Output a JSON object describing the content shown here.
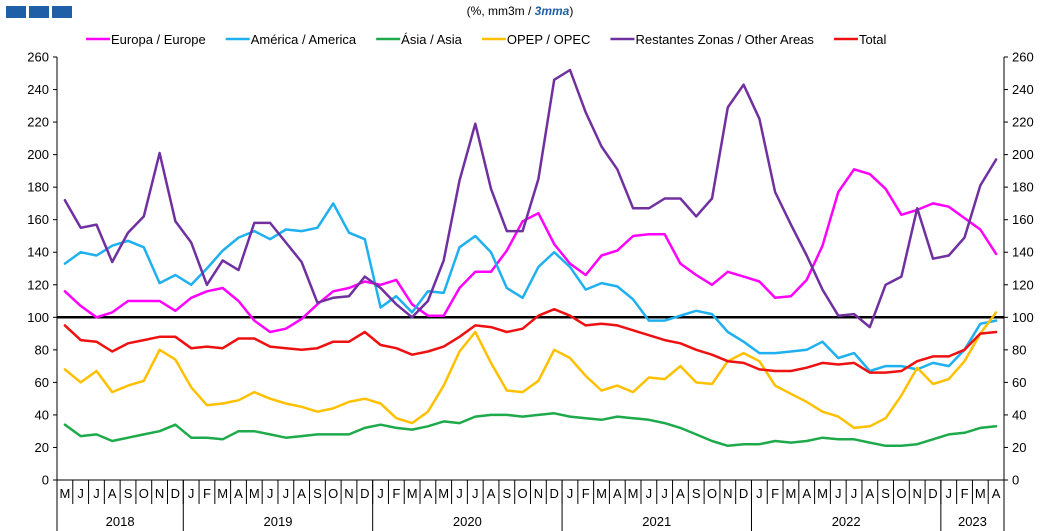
{
  "header": {
    "subtitle_prefix": "(%, mm3m  / ",
    "subtitle_emph": "3mma",
    "subtitle_suffix": ")"
  },
  "chart_data": {
    "type": "line",
    "ylim": [
      0,
      260
    ],
    "y_ticks": [
      0,
      20,
      40,
      60,
      80,
      100,
      120,
      140,
      160,
      180,
      200,
      220,
      240,
      260
    ],
    "reference_line": 100,
    "legend_placement": "top",
    "grid": false,
    "x_month_labels": [
      "M",
      "J",
      "J",
      "A",
      "S",
      "O",
      "N",
      "D",
      "J",
      "F",
      "M",
      "A",
      "M",
      "J",
      "J",
      "A",
      "S",
      "O",
      "N",
      "D",
      "J",
      "F",
      "M",
      "A",
      "M",
      "J",
      "J",
      "A",
      "S",
      "O",
      "N",
      "D",
      "J",
      "F",
      "M",
      "A",
      "M",
      "J",
      "J",
      "A",
      "S",
      "O",
      "N",
      "D",
      "J",
      "F",
      "M",
      "A",
      "M",
      "J",
      "J",
      "A",
      "S",
      "O",
      "N",
      "D",
      "J",
      "F",
      "M",
      "A"
    ],
    "year_groups": [
      {
        "label": "2018",
        "count": 8
      },
      {
        "label": "2019",
        "count": 12
      },
      {
        "label": "2020",
        "count": 12
      },
      {
        "label": "2021",
        "count": 12
      },
      {
        "label": "2022",
        "count": 12
      },
      {
        "label": "2023",
        "count": 4
      }
    ],
    "series": [
      {
        "name": "Europa / Europe",
        "color": "#ff00ff",
        "values": [
          116,
          107,
          100,
          103,
          110,
          110,
          110,
          104,
          112,
          116,
          118,
          110,
          98,
          91,
          93,
          99,
          108,
          116,
          118,
          122,
          120,
          123,
          108,
          101,
          101,
          118,
          128,
          128,
          141,
          159,
          164,
          145,
          133,
          126,
          138,
          141,
          150,
          151,
          151,
          133,
          126,
          120,
          128,
          125,
          122,
          112,
          113,
          123,
          144,
          177,
          191,
          188,
          179,
          163,
          166,
          170,
          168,
          161,
          154,
          139
        ]
      },
      {
        "name": "América / America",
        "color": "#1fb0f0",
        "values": [
          133,
          140,
          138,
          144,
          147,
          143,
          121,
          126,
          120,
          130,
          141,
          149,
          153,
          148,
          154,
          153,
          155,
          170,
          152,
          148,
          106,
          113,
          103,
          116,
          115,
          143,
          150,
          140,
          118,
          112,
          131,
          140,
          131,
          117,
          121,
          119,
          111,
          98,
          98,
          101,
          104,
          102,
          91,
          85,
          78,
          78,
          79,
          80,
          85,
          75,
          78,
          67,
          70,
          70,
          68,
          72,
          70,
          80,
          96,
          98
        ]
      },
      {
        "name": "Ásia / Asia",
        "color": "#1eaa4b",
        "values": [
          34,
          27,
          28,
          24,
          26,
          28,
          30,
          34,
          26,
          26,
          25,
          30,
          30,
          28,
          26,
          27,
          28,
          28,
          28,
          32,
          34,
          32,
          31,
          33,
          36,
          35,
          39,
          40,
          40,
          39,
          40,
          41,
          39,
          38,
          37,
          39,
          38,
          37,
          35,
          32,
          28,
          24,
          21,
          22,
          22,
          24,
          23,
          24,
          26,
          25,
          25,
          23,
          21,
          21,
          22,
          25,
          28,
          29,
          32,
          33
        ]
      },
      {
        "name": "OPEP / OPEC",
        "color": "#ffc000",
        "values": [
          68,
          60,
          67,
          54,
          58,
          61,
          80,
          74,
          57,
          46,
          47,
          49,
          54,
          50,
          47,
          45,
          42,
          44,
          48,
          50,
          47,
          38,
          35,
          42,
          58,
          79,
          91,
          72,
          55,
          54,
          61,
          80,
          75,
          64,
          55,
          58,
          54,
          63,
          62,
          70,
          60,
          59,
          73,
          78,
          73,
          58,
          53,
          48,
          42,
          39,
          32,
          33,
          38,
          52,
          69,
          59,
          62,
          73,
          90,
          103
        ]
      },
      {
        "name": "Restantes Zonas / Other Areas",
        "color": "#7030a0",
        "values": [
          172,
          155,
          157,
          134,
          152,
          162,
          201,
          159,
          146,
          120,
          135,
          129,
          158,
          158,
          146,
          134,
          109,
          112,
          113,
          125,
          118,
          108,
          100,
          110,
          135,
          184,
          219,
          179,
          153,
          153,
          185,
          246,
          252,
          226,
          205,
          191,
          167,
          167,
          173,
          173,
          162,
          173,
          229,
          243,
          222,
          177,
          157,
          138,
          117,
          101,
          102,
          94,
          120,
          125,
          167,
          136,
          138,
          149,
          181,
          197
        ]
      },
      {
        "name": "Total",
        "color": "#ee1111",
        "values": [
          95,
          86,
          85,
          79,
          84,
          86,
          88,
          88,
          81,
          82,
          81,
          87,
          87,
          82,
          81,
          80,
          81,
          85,
          85,
          91,
          83,
          81,
          77,
          79,
          82,
          88,
          95,
          94,
          91,
          93,
          101,
          105,
          101,
          95,
          96,
          95,
          92,
          89,
          86,
          84,
          80,
          77,
          73,
          72,
          68,
          67,
          67,
          69,
          72,
          71,
          72,
          66,
          66,
          67,
          73,
          76,
          76,
          80,
          90,
          91
        ]
      }
    ]
  }
}
